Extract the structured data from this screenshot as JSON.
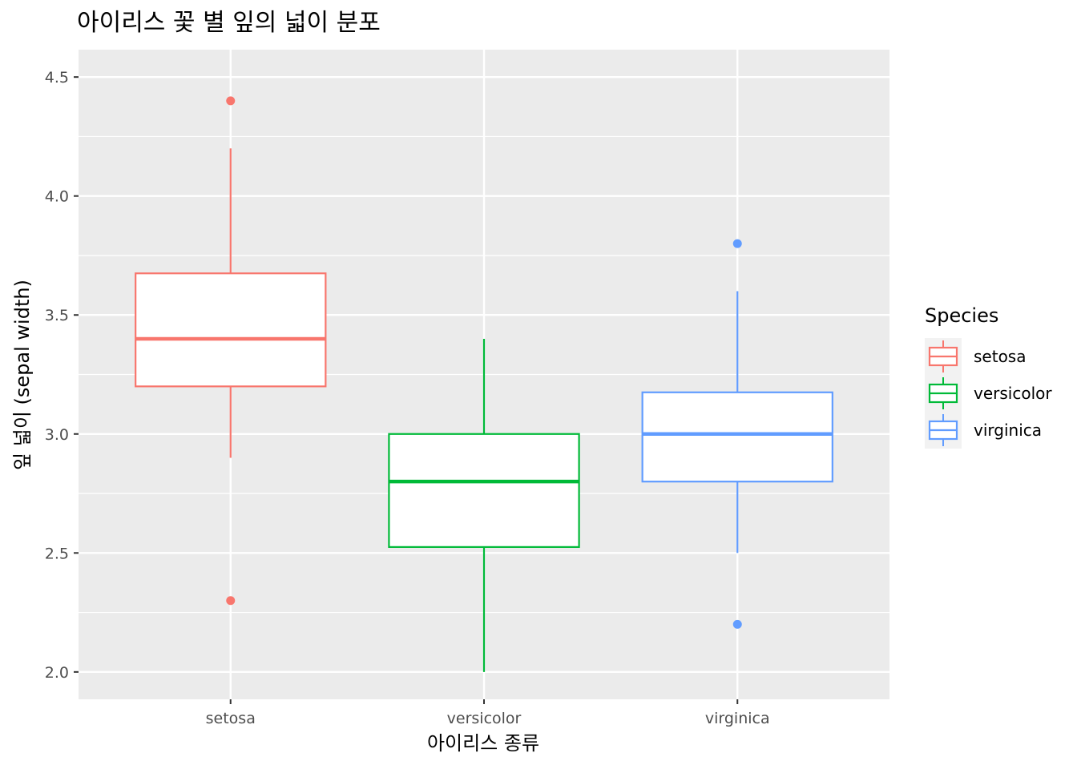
{
  "chart_data": {
    "type": "boxplot",
    "title": "아이리스 꽃 별 잎의 넓이 분포",
    "xlabel": "아이리스 종류",
    "ylabel": "잎 넓이 (sepal width)",
    "ylim": [
      1.885,
      4.615
    ],
    "y_ticks": [
      2.0,
      2.5,
      3.0,
      3.5,
      4.0,
      4.5
    ],
    "y_tick_labels": [
      "2.0",
      "2.5",
      "3.0",
      "3.5",
      "4.0",
      "4.5"
    ],
    "categories": [
      "setosa",
      "versicolor",
      "virginica"
    ],
    "grid": true,
    "legend": {
      "title": "Species",
      "position": "right",
      "entries": [
        "setosa",
        "versicolor",
        "virginica"
      ]
    },
    "colors": {
      "setosa": "#F8766D",
      "versicolor": "#00BA38",
      "virginica": "#619CFF",
      "panel_background": "#EBEBEB",
      "grid_line": "#FFFFFF"
    },
    "series": [
      {
        "name": "setosa",
        "min": 2.9,
        "q1": 3.2,
        "median": 3.4,
        "q3": 3.675,
        "max": 4.2,
        "outliers": [
          4.4,
          2.3
        ]
      },
      {
        "name": "versicolor",
        "min": 2.0,
        "q1": 2.525,
        "median": 2.8,
        "q3": 3.0,
        "max": 3.4,
        "outliers": []
      },
      {
        "name": "virginica",
        "min": 2.5,
        "q1": 2.8,
        "median": 3.0,
        "q3": 3.175,
        "max": 3.6,
        "outliers": [
          3.8,
          2.2
        ]
      }
    ]
  }
}
